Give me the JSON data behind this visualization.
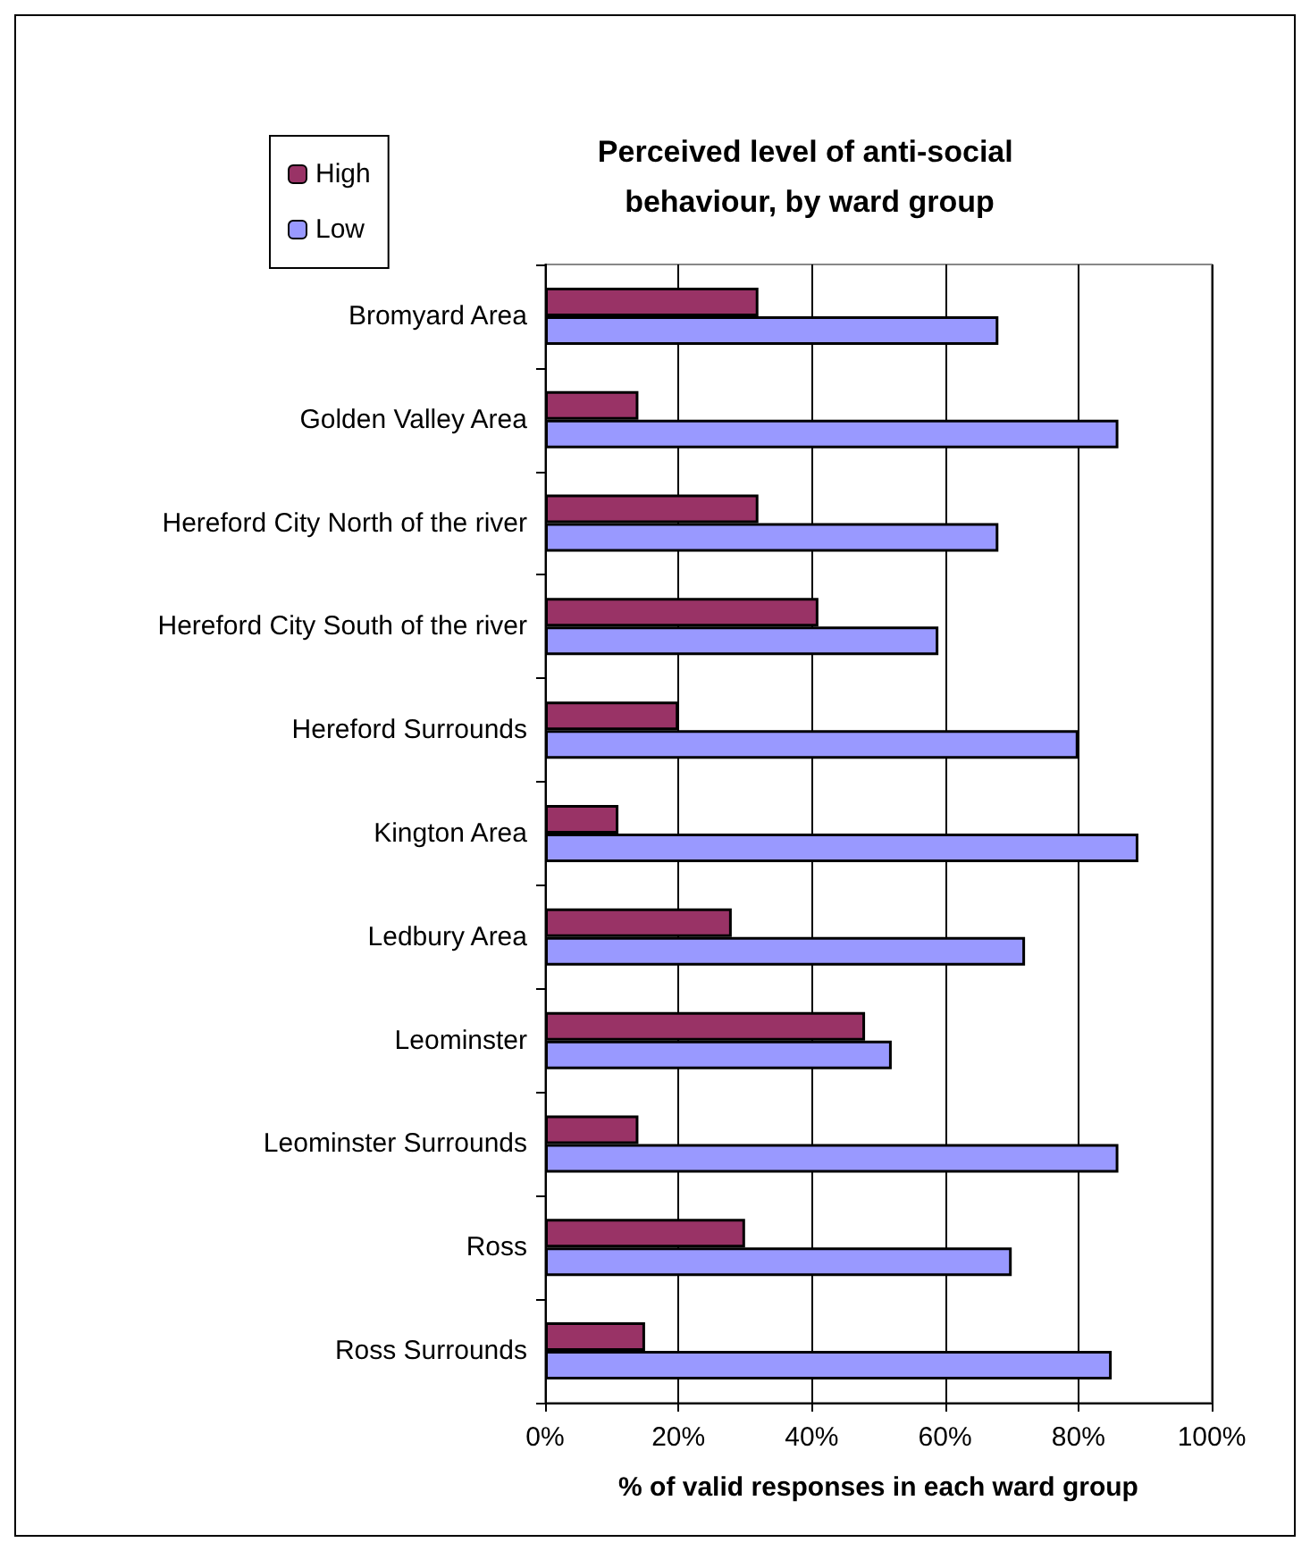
{
  "chart_data": {
    "type": "bar",
    "orientation": "horizontal",
    "title": "Perceived level of anti-social behaviour, by ward group",
    "xlabel": "% of valid responses in each ward group",
    "categories": [
      "Bromyard Area",
      "Golden Valley Area",
      "Hereford City North of the river",
      "Hereford City South of the river",
      "Hereford Surrounds",
      "Kington Area",
      "Ledbury Area",
      "Leominster",
      "Leominster Surrounds",
      "Ross",
      "Ross Surrounds"
    ],
    "series": [
      {
        "name": "High",
        "color": "#993366",
        "values": [
          32,
          14,
          32,
          41,
          20,
          11,
          28,
          48,
          14,
          30,
          15
        ]
      },
      {
        "name": "Low",
        "color": "#9999ff",
        "values": [
          68,
          86,
          68,
          59,
          80,
          89,
          72,
          52,
          86,
          70,
          85
        ]
      }
    ],
    "xlim": [
      0,
      100
    ],
    "xticks": [
      {
        "value": 0,
        "label": "0%"
      },
      {
        "value": 20,
        "label": "20%"
      },
      {
        "value": 40,
        "label": "40%"
      },
      {
        "value": 60,
        "label": "60%"
      },
      {
        "value": 80,
        "label": "80%"
      },
      {
        "value": 100,
        "label": "100%"
      }
    ],
    "grid": "x",
    "legend": "top left"
  }
}
